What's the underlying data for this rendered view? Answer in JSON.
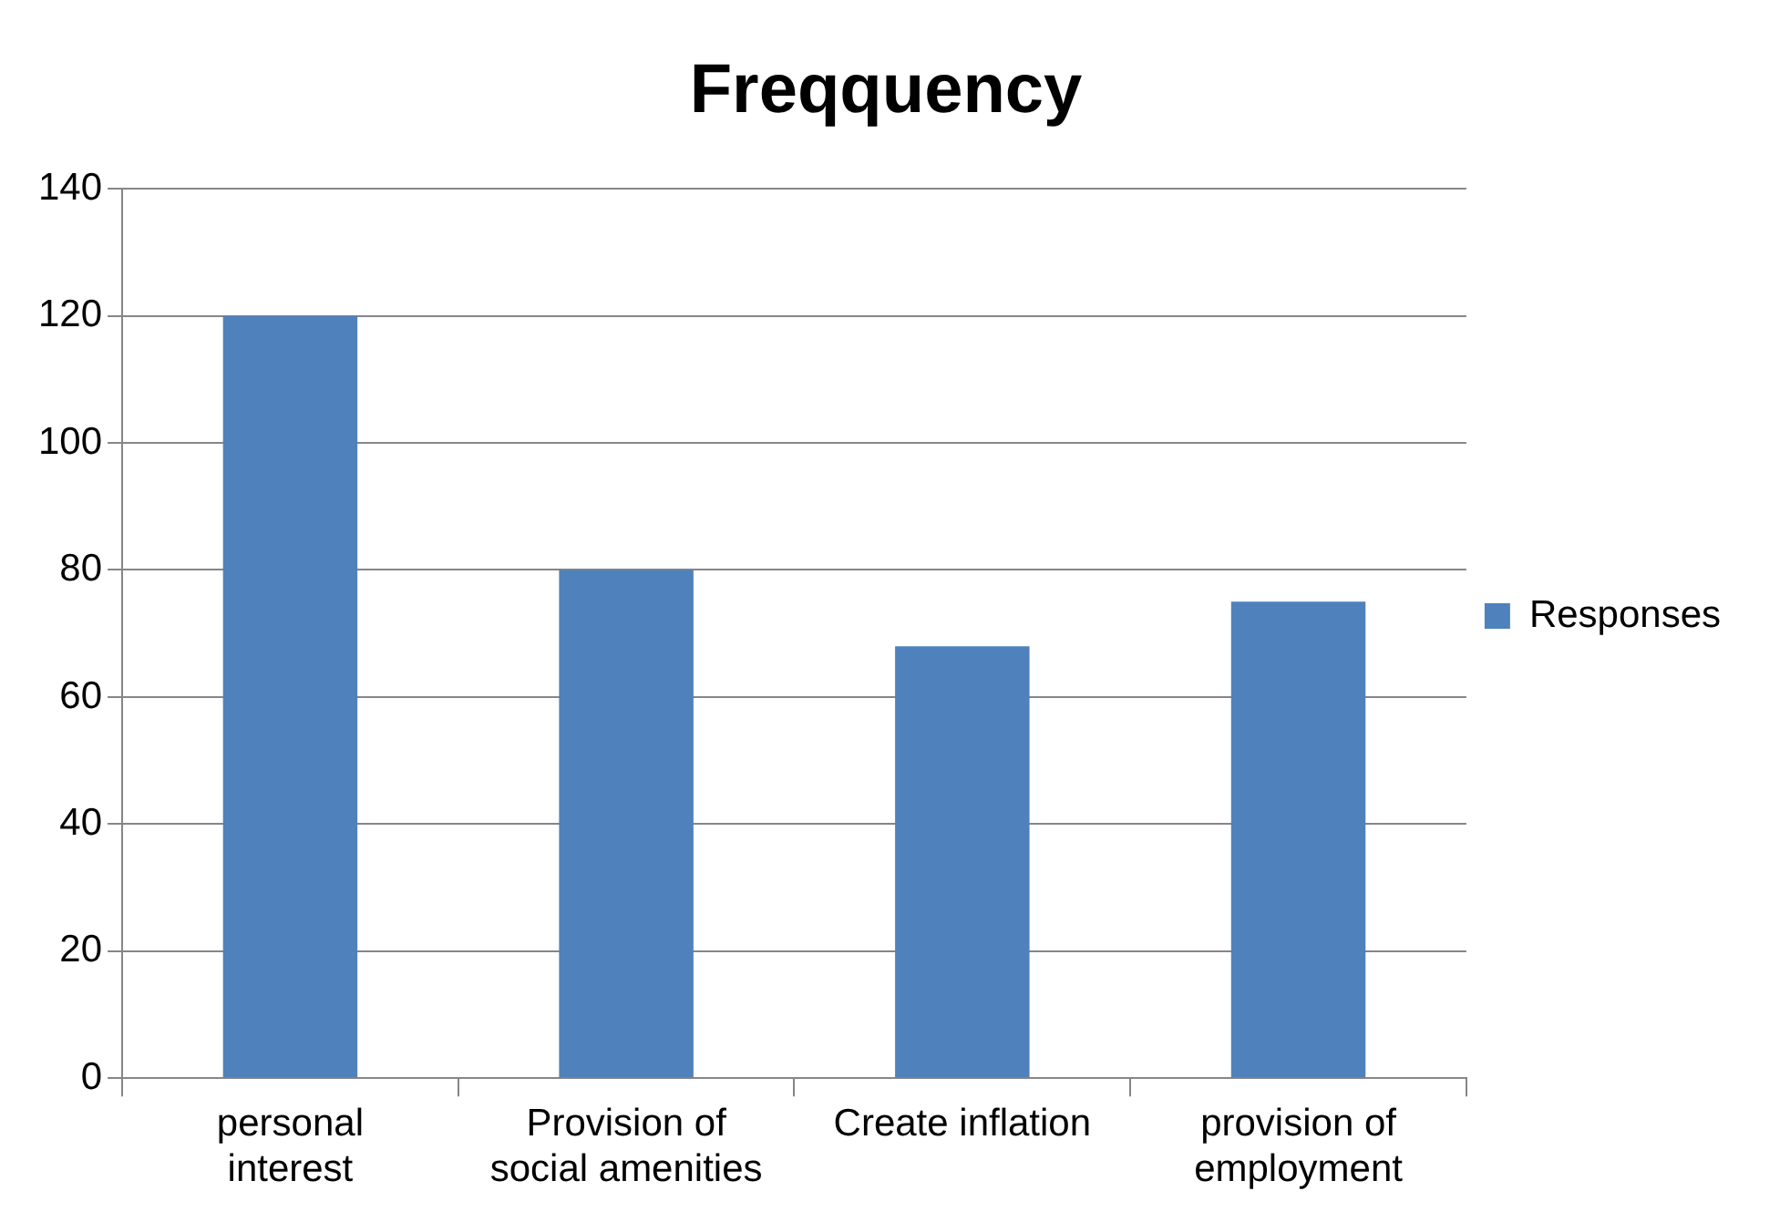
{
  "chart_data": {
    "type": "bar",
    "title": "Freqquency",
    "categories": [
      "personal interest",
      "Provision of social amenities",
      "Create inflation",
      "provision of employment"
    ],
    "series": [
      {
        "name": "Responses",
        "color": "#4f81bd",
        "values": [
          120,
          80,
          68,
          75
        ]
      }
    ],
    "ylim": [
      0,
      140
    ],
    "yticks": [
      0,
      20,
      40,
      60,
      80,
      100,
      120,
      140
    ],
    "grid": "y",
    "legend": "right"
  }
}
